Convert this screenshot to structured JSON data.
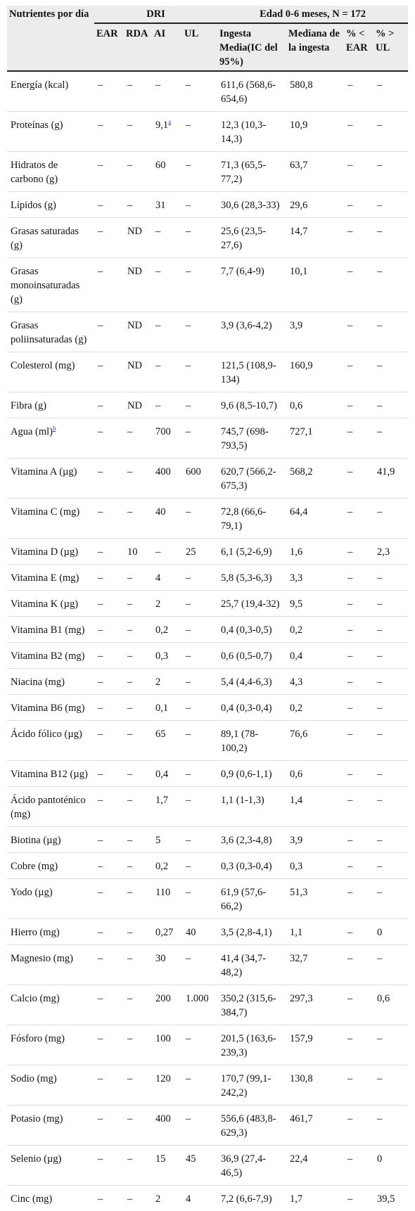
{
  "header": {
    "nutrient_col": "Nutrientes por día",
    "dri_group": "DRI",
    "age_group": "Edad 0-6 meses, N = 172",
    "sub": [
      "EAR",
      "RDA",
      "AI",
      "UL",
      "Ingesta Media(IC del 95%)",
      "Mediana de la ingesta",
      "% < EAR",
      "% > UL"
    ]
  },
  "rows": [
    {
      "n": "Energía (kcal)",
      "ear": "–",
      "rda": "–",
      "ai": "–",
      "ul": "–",
      "mean": "611,6 (568,6-654,6)",
      "median": "580,8",
      "pear": "–",
      "pul": "–"
    },
    {
      "n": "Proteínas (g)",
      "ear": "–",
      "rda": "–",
      "ai": "9,1",
      "ai_note": "a",
      "ul": "–",
      "mean": "12,3 (10,3-14,3)",
      "median": "10,9",
      "pear": "–",
      "pul": "–"
    },
    {
      "n": "Hidratos de carbono (g)",
      "ear": "–",
      "rda": "–",
      "ai": "60",
      "ul": "–",
      "mean": "71,3 (65,5-77,2)",
      "median": "63,7",
      "pear": "–",
      "pul": "–"
    },
    {
      "n": "Lípidos (g)",
      "ear": "–",
      "rda": "–",
      "ai": "31",
      "ul": "–",
      "mean": "30,6 (28,3-33)",
      "median": "29,6",
      "pear": "–",
      "pul": "–"
    },
    {
      "n": "Grasas saturadas (g)",
      "ear": "–",
      "rda": "ND",
      "ai": "–",
      "ul": "–",
      "mean": "25,6 (23,5-27,6)",
      "median": "14,7",
      "pear": "–",
      "pul": "–"
    },
    {
      "n": "Grasas monoinsaturadas (g)",
      "ear": "–",
      "rda": "ND",
      "ai": "–",
      "ul": "–",
      "mean": "7,7 (6,4-9)",
      "median": "10,1",
      "pear": "–",
      "pul": "–"
    },
    {
      "n": "Grasas poliinsaturadas (g)",
      "ear": "–",
      "rda": "ND",
      "ai": "–",
      "ul": "–",
      "mean": "3,9 (3,6-4,2)",
      "median": "3,9",
      "pear": "–",
      "pul": "–"
    },
    {
      "n": "Colesterol (mg)",
      "ear": "–",
      "rda": "ND",
      "ai": "–",
      "ul": "–",
      "mean": "121,5 (108,9-134)",
      "median": "160,9",
      "pear": "–",
      "pul": "–"
    },
    {
      "n": "Fibra (g)",
      "ear": "–",
      "rda": "ND",
      "ai": "–",
      "ul": "–",
      "mean": "9,6 (8,5-10,7)",
      "median": "0,6",
      "pear": "–",
      "pul": "–"
    },
    {
      "n": "Agua (ml)",
      "n_note": "b",
      "ear": "–",
      "rda": "–",
      "ai": "700",
      "ul": "–",
      "mean": "745,7 (698-793,5)",
      "median": "727,1",
      "pear": "–",
      "pul": "–"
    },
    {
      "n": "Vitamina A (µg)",
      "ear": "–",
      "rda": "–",
      "ai": "400",
      "ul": "600",
      "mean": "620,7 (566,2-675,3)",
      "median": "568,2",
      "pear": "–",
      "pul": "41,9"
    },
    {
      "n": "Vitamina C (mg)",
      "ear": "–",
      "rda": "–",
      "ai": "40",
      "ul": "–",
      "mean": "72,8 (66,6-79,1)",
      "median": "64,4",
      "pear": "–",
      "pul": "–"
    },
    {
      "n": "Vitamina D (µg)",
      "ear": "–",
      "rda": "10",
      "ai": "–",
      "ul": "25",
      "mean": "6,1 (5,2-6,9)",
      "median": "1,6",
      "pear": "–",
      "pul": "2,3"
    },
    {
      "n": "Vitamina E (mg)",
      "ear": "–",
      "rda": "–",
      "ai": "4",
      "ul": "–",
      "mean": "5,8 (5,3-6,3)",
      "median": "3,3",
      "pear": "–",
      "pul": "–"
    },
    {
      "n": "Vitamina K (µg)",
      "ear": "–",
      "rda": "–",
      "ai": "2",
      "ul": "–",
      "mean": "25,7 (19,4-32)",
      "median": "9,5",
      "pear": "–",
      "pul": "–"
    },
    {
      "n": "Vitamina B1 (mg)",
      "ear": "–",
      "rda": "–",
      "ai": "0,2",
      "ul": "–",
      "mean": "0,4 (0,3-0,5)",
      "median": "0,2",
      "pear": "–",
      "pul": "–"
    },
    {
      "n": "Vitamina B2 (mg)",
      "ear": "–",
      "rda": "–",
      "ai": "0,3",
      "ul": "–",
      "mean": "0,6 (0,5-0,7)",
      "median": "0,4",
      "pear": "–",
      "pul": "–"
    },
    {
      "n": "Niacina (mg)",
      "ear": "–",
      "rda": "–",
      "ai": "2",
      "ul": "–",
      "mean": "5,4 (4,4-6,3)",
      "median": "4,3",
      "pear": "–",
      "pul": "–"
    },
    {
      "n": "Vitamina B6 (mg)",
      "ear": "–",
      "rda": "–",
      "ai": "0,1",
      "ul": "–",
      "mean": "0,4 (0,3-0,4)",
      "median": "0,2",
      "pear": "–",
      "pul": "–"
    },
    {
      "n": "Ácido fólico (µg)",
      "ear": "–",
      "rda": "–",
      "ai": "65",
      "ul": "–",
      "mean": "89,1 (78-100,2)",
      "median": "76,6",
      "pear": "–",
      "pul": "–"
    },
    {
      "n": "Vitamina B12 (µg)",
      "ear": "–",
      "rda": "–",
      "ai": "0,4",
      "ul": "–",
      "mean": "0,9 (0,6-1,1)",
      "median": "0,6",
      "pear": "–",
      "pul": "–"
    },
    {
      "n": "Ácido pantoténico (mg)",
      "ear": "–",
      "rda": "–",
      "ai": "1,7",
      "ul": "–",
      "mean": "1,1 (1-1,3)",
      "median": "1,4",
      "pear": "–",
      "pul": "–"
    },
    {
      "n": "Biotina (µg)",
      "ear": "–",
      "rda": "–",
      "ai": "5",
      "ul": "–",
      "mean": "3,6 (2,3-4,8)",
      "median": "3,9",
      "pear": "–",
      "pul": "–"
    },
    {
      "n": "Cobre (mg)",
      "ear": "–",
      "rda": "–",
      "ai": "0,2",
      "ul": "–",
      "mean": "0,3 (0,3-0,4)",
      "median": "0,3",
      "pear": "–",
      "pul": "–"
    },
    {
      "n": "Yodo (µg)",
      "ear": "–",
      "rda": "–",
      "ai": "110",
      "ul": "–",
      "mean": "61,9 (57,6-66,2)",
      "median": "51,3",
      "pear": "–",
      "pul": "–"
    },
    {
      "n": "Hierro (mg)",
      "ear": "–",
      "rda": "–",
      "ai": "0,27",
      "ul": "40",
      "mean": "3,5 (2,8-4,1)",
      "median": "1,1",
      "pear": "–",
      "pul": "0"
    },
    {
      "n": "Magnesio (mg)",
      "ear": "–",
      "rda": "–",
      "ai": "30",
      "ul": "–",
      "mean": "41,4 (34,7-48,2)",
      "median": "32,7",
      "pear": "–",
      "pul": "–"
    },
    {
      "n": "Calcio (mg)",
      "ear": "–",
      "rda": "–",
      "ai": "200",
      "ul": "1.000",
      "mean": "350,2 (315,6-384,7)",
      "median": "297,3",
      "pear": "–",
      "pul": "0,6"
    },
    {
      "n": "Fósforo (mg)",
      "ear": "–",
      "rda": "–",
      "ai": "100",
      "ul": "–",
      "mean": "201,5 (163,6-239,3)",
      "median": "157,9",
      "pear": "–",
      "pul": "–"
    },
    {
      "n": "Sodio (mg)",
      "ear": "–",
      "rda": "–",
      "ai": "120",
      "ul": "–",
      "mean": "170,7 (99,1-242,2)",
      "median": "130,8",
      "pear": "–",
      "pul": "–"
    },
    {
      "n": "Potasio (mg)",
      "ear": "–",
      "rda": "–",
      "ai": "400",
      "ul": "–",
      "mean": "556,6 (483,8-629,3)",
      "median": "461,7",
      "pear": "–",
      "pul": "–"
    },
    {
      "n": "Selenio (µg)",
      "ear": "–",
      "rda": "–",
      "ai": "15",
      "ul": "45",
      "mean": "36,9 (27,4-46,5)",
      "median": "22,4",
      "pear": "–",
      "pul": "0"
    },
    {
      "n": "Cinc (mg)",
      "ear": "–",
      "rda": "–",
      "ai": "2",
      "ul": "4",
      "mean": "7,2 (6,6-7,9)",
      "median": "1,7",
      "pear": "–",
      "pul": "39,5"
    }
  ]
}
